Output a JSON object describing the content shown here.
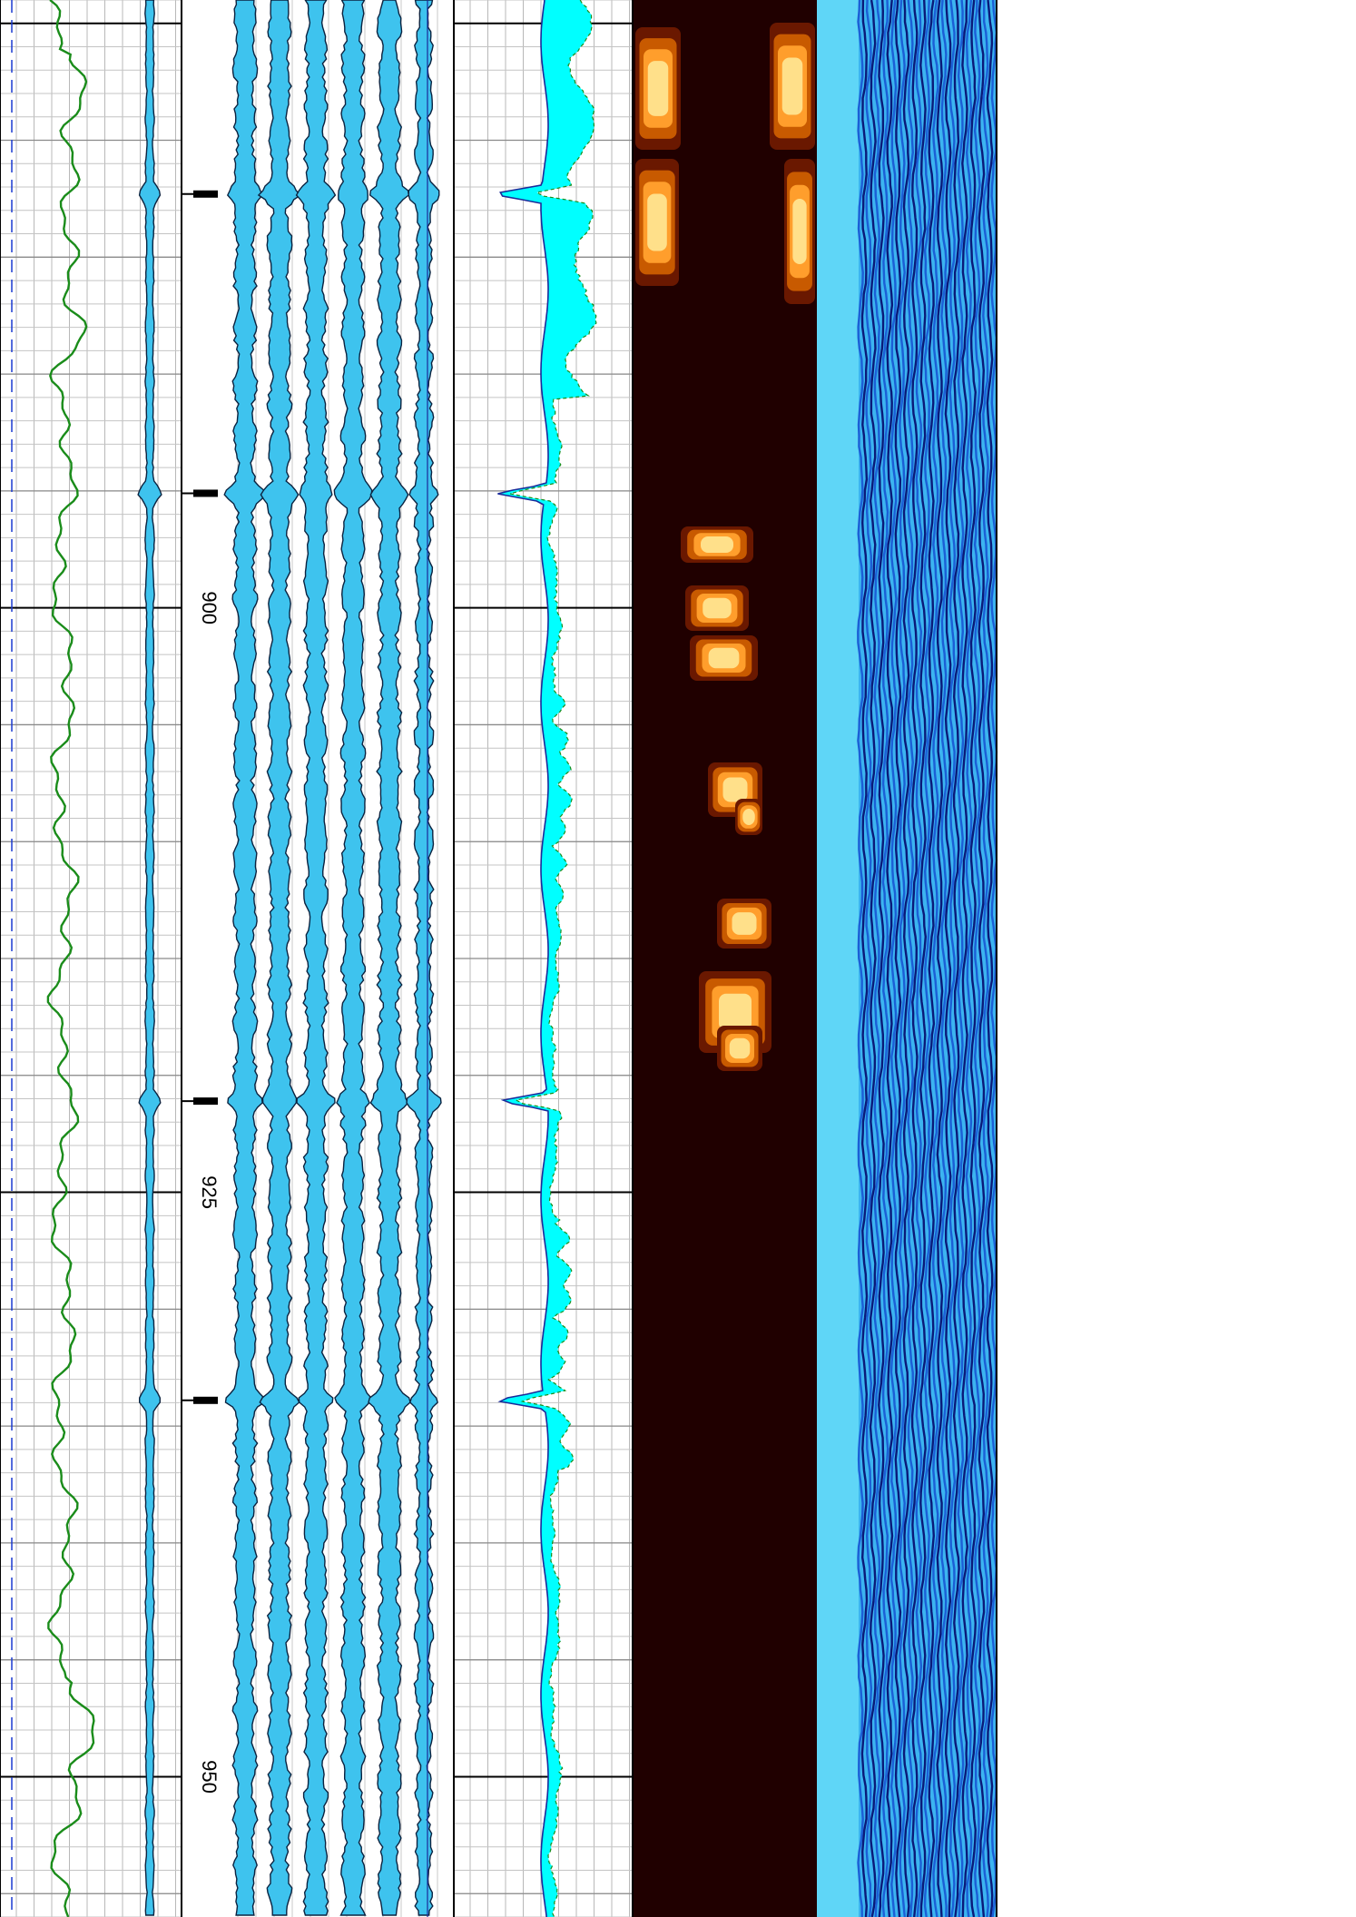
{
  "chart_data": {
    "type": "line",
    "orientation": "depth-vertical",
    "depth_axis": {
      "range": [
        874,
        956
      ],
      "labels": [
        "900",
        "925",
        "950"
      ],
      "label_values": [
        900,
        925,
        950
      ],
      "major_every": 25,
      "minor_every": 5,
      "collar_marks": [
        882.3,
        895.1,
        921.1,
        933.9
      ]
    },
    "tracks": [
      {
        "name": "",
        "kind": "curve",
        "color": "#1a8c1a"
      },
      {
        "name": "",
        "kind": "filled-curve",
        "color": "#3ec3ee"
      },
      {
        "name": "",
        "kind": "depth"
      },
      {
        "name": "",
        "kind": "multi-filled-curves",
        "count": 6,
        "color": "#3ec3ee"
      },
      {
        "name": "",
        "kind": "filled-curve",
        "color": "#00ffff"
      },
      {
        "name": "",
        "kind": "amplitude-image",
        "palette": [
          "#200000",
          "#6a1800",
          "#c85a00",
          "#ff9e2c",
          "#ffe08a"
        ]
      },
      {
        "name": "",
        "kind": "waveform-image",
        "palette": [
          "#0a1a7a",
          "#1b5fd6",
          "#3cb4f0",
          "#8ee6ff"
        ]
      }
    ],
    "grid": true
  }
}
